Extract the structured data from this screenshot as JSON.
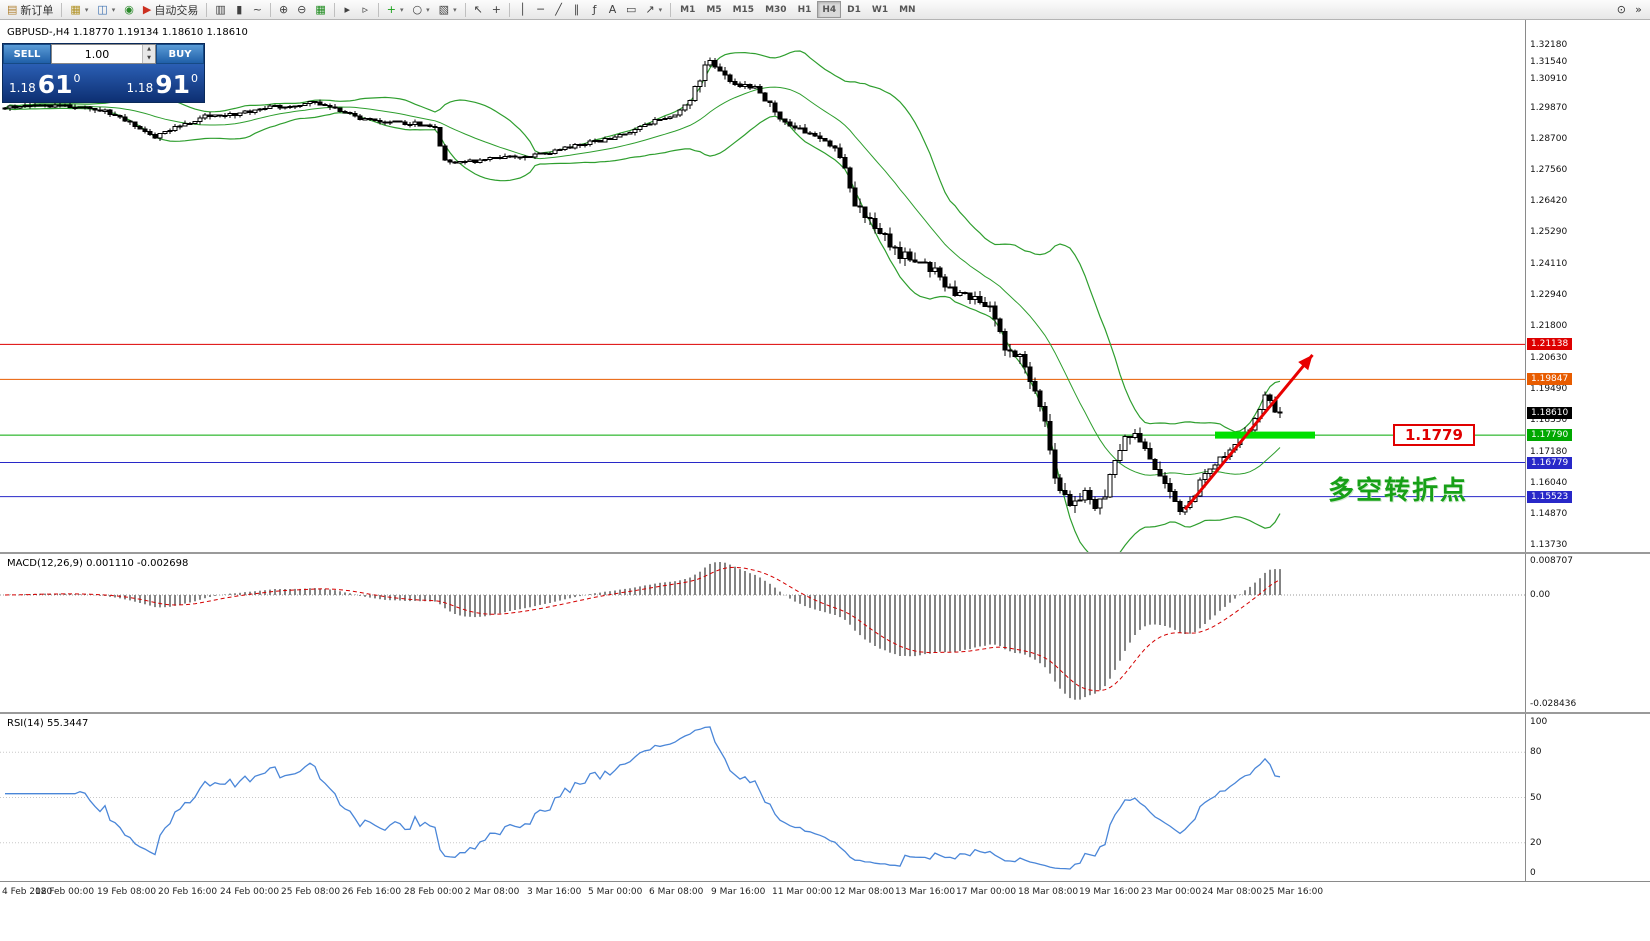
{
  "toolbar": {
    "groups": [
      {
        "items": [
          {
            "name": "new-order",
            "glyph": "▤",
            "glyph_color": "#b08030",
            "label": "新订单"
          }
        ]
      },
      {
        "items": [
          {
            "name": "new-chart",
            "glyph": "▦",
            "glyph_color": "#b09020",
            "dropdown": true
          },
          {
            "name": "profiles",
            "glyph": "◫",
            "glyph_color": "#3a6fb0",
            "dropdown": true
          },
          {
            "name": "refresh",
            "glyph": "◉",
            "glyph_color": "#2a8a2a"
          },
          {
            "name": "autotrade",
            "glyph": "▶",
            "glyph_color": "#cc3020",
            "label": "自动交易"
          }
        ]
      },
      {
        "items": [
          {
            "name": "bar-chart",
            "glyph": "▥"
          },
          {
            "name": "candlestick-chart",
            "glyph": "▮"
          },
          {
            "name": "line-chart",
            "glyph": "~"
          }
        ]
      },
      {
        "items": [
          {
            "name": "zoom-in",
            "glyph": "⊕"
          },
          {
            "name": "zoom-out",
            "glyph": "⊖"
          },
          {
            "name": "tile-windows",
            "glyph": "▦",
            "glyph_color": "#1a8a1a"
          }
        ]
      },
      {
        "items": [
          {
            "name": "auto-scroll",
            "glyph": "▸"
          },
          {
            "name": "chart-shift",
            "glyph": "▹"
          }
        ]
      },
      {
        "items": [
          {
            "name": "add-indicator",
            "glyph": "+",
            "glyph_color": "#18a018",
            "dropdown": true
          },
          {
            "name": "period-menu",
            "glyph": "○",
            "dropdown": true
          },
          {
            "name": "template-menu",
            "glyph": "▧",
            "dropdown": true
          }
        ]
      },
      {
        "items": [
          {
            "name": "cursor",
            "glyph": "↖"
          },
          {
            "name": "crosshair",
            "glyph": "+"
          }
        ]
      },
      {
        "items": [
          {
            "name": "vertical-line",
            "glyph": "│"
          },
          {
            "name": "horizontal-line",
            "glyph": "─"
          },
          {
            "name": "trendline",
            "glyph": "╱"
          },
          {
            "name": "equidistant-channel",
            "glyph": "∥"
          },
          {
            "name": "fibonacci",
            "glyph": "ƒ"
          },
          {
            "name": "text",
            "glyph": "A"
          },
          {
            "name": "text-label",
            "glyph": "▭"
          },
          {
            "name": "arrows-menu",
            "glyph": "↗",
            "dropdown": true
          }
        ]
      }
    ],
    "timeframes": {
      "items": [
        "M1",
        "M5",
        "M15",
        "M30",
        "H1",
        "H4",
        "D1",
        "W1",
        "MN"
      ],
      "active": "H4"
    },
    "right_icons": [
      {
        "name": "search",
        "glyph": "⊙"
      },
      {
        "name": "toolbar-overflow",
        "glyph": "»"
      }
    ]
  },
  "trade_panel": {
    "sell_label": "SELL",
    "buy_label": "BUY",
    "volume": "1.00",
    "sell_price": {
      "prefix": "1.18",
      "big": "61",
      "sup": "0"
    },
    "buy_price": {
      "prefix": "1.18",
      "big": "91",
      "sup": "0"
    }
  },
  "main_chart": {
    "title": "GBPUSD-,H4 1.18770 1.19134 1.18610 1.18610",
    "annotations": {
      "price_tag": "1.1779",
      "turning_point": "多空转折点"
    }
  },
  "macd": {
    "label": "MACD(12,26,9) 0.001110 -0.002698",
    "scale_top": "0.008707",
    "scale_zero": "0.00",
    "scale_bottom": "-0.028436"
  },
  "rsi": {
    "label": "RSI(14) 55.3447",
    "ticks": [
      "100",
      "80",
      "50",
      "20",
      "0"
    ]
  },
  "chart_data": {
    "type": "candlestick",
    "symbol": "GBPUSD-",
    "timeframe": "H4",
    "ohlc_current": {
      "open": 1.1877,
      "high": 1.19134,
      "low": 1.1861,
      "close": 1.1861
    },
    "bars_total": 256,
    "price_axis": {
      "view_max": 1.331,
      "view_min": 1.1348,
      "ticks": [
        "1.32180",
        "1.31540",
        "1.30910",
        "1.29870",
        "1.28700",
        "1.27560",
        "1.26420",
        "1.25290",
        "1.24110",
        "1.22940",
        "1.21800",
        "1.20630",
        "1.19490",
        "1.18350",
        "1.17180",
        "1.16040",
        "1.14870",
        "1.13730"
      ]
    },
    "price_path_anchors": [
      [
        0,
        1.2985
      ],
      [
        8,
        1.2995
      ],
      [
        14,
        1.299
      ],
      [
        22,
        1.2965
      ],
      [
        26,
        1.292
      ],
      [
        30,
        1.2878
      ],
      [
        34,
        1.2915
      ],
      [
        40,
        1.2953
      ],
      [
        46,
        1.296
      ],
      [
        52,
        1.2985
      ],
      [
        58,
        1.2995
      ],
      [
        62,
        1.3008
      ],
      [
        66,
        1.2985
      ],
      [
        70,
        1.295
      ],
      [
        76,
        1.2935
      ],
      [
        82,
        1.293
      ],
      [
        86,
        1.291
      ],
      [
        88,
        1.279
      ],
      [
        92,
        1.2785
      ],
      [
        98,
        1.28
      ],
      [
        104,
        1.2808
      ],
      [
        110,
        1.2825
      ],
      [
        114,
        1.285
      ],
      [
        120,
        1.2868
      ],
      [
        126,
        1.2905
      ],
      [
        131,
        1.2945
      ],
      [
        134,
        1.2955
      ],
      [
        137,
        1.301
      ],
      [
        139,
        1.3095
      ],
      [
        141,
        1.3175
      ],
      [
        143,
        1.312
      ],
      [
        146,
        1.307
      ],
      [
        150,
        1.306
      ],
      [
        153,
        1.3
      ],
      [
        156,
        1.293
      ],
      [
        160,
        1.29
      ],
      [
        164,
        1.2865
      ],
      [
        167,
        1.282
      ],
      [
        170,
        1.263
      ],
      [
        174,
        1.2555
      ],
      [
        178,
        1.2455
      ],
      [
        182,
        1.242
      ],
      [
        186,
        1.238
      ],
      [
        190,
        1.23
      ],
      [
        194,
        1.228
      ],
      [
        197,
        1.224
      ],
      [
        200,
        1.211
      ],
      [
        203,
        1.206
      ],
      [
        206,
        1.195
      ],
      [
        208,
        1.182
      ],
      [
        210,
        1.161
      ],
      [
        213,
        1.1525
      ],
      [
        216,
        1.1565
      ],
      [
        218,
        1.151
      ],
      [
        220,
        1.1545
      ],
      [
        222,
        1.17
      ],
      [
        225,
        1.1785
      ],
      [
        227,
        1.175
      ],
      [
        229,
        1.168
      ],
      [
        231,
        1.1625
      ],
      [
        233,
        1.156
      ],
      [
        235,
        1.1505
      ],
      [
        237,
        1.1525
      ],
      [
        239,
        1.16
      ],
      [
        241,
        1.1655
      ],
      [
        243,
        1.17
      ],
      [
        245,
        1.172
      ],
      [
        247,
        1.176
      ],
      [
        249,
        1.1805
      ],
      [
        251,
        1.188
      ],
      [
        252,
        1.193
      ],
      [
        253,
        1.19
      ],
      [
        254,
        1.1875
      ],
      [
        255,
        1.1861
      ]
    ],
    "bollinger": {
      "period": 20,
      "deviation": 2,
      "color": "#2e9e2e"
    },
    "hlines": [
      {
        "price": 1.21138,
        "label": "1.21138",
        "color": "#dd0000"
      },
      {
        "price": 1.19847,
        "label": "1.19847",
        "color": "#e85c00"
      },
      {
        "price": 1.1779,
        "label": "1.17790",
        "color": "#00a800",
        "highlight_segment": {
          "from_bar": 242,
          "to_bar": 262
        }
      },
      {
        "price": 1.16779,
        "label": "1.16779",
        "color": "#2828c8"
      },
      {
        "price": 1.15523,
        "label": "1.15523",
        "color": "#2828c8"
      }
    ],
    "current_price_label": {
      "price": 1.1861,
      "label": "1.18610"
    },
    "trend_arrow": {
      "from_bar": 236,
      "from_price": 1.1505,
      "to_bar": 261.5,
      "to_price": 1.2075,
      "color": "#e80000"
    },
    "indicators": {
      "macd": {
        "fast": 12,
        "slow": 26,
        "signal": 9,
        "value": 0.00111,
        "signal_value": -0.002698,
        "scale_top": 0.008707,
        "scale_bottom": -0.028436
      },
      "rsi": {
        "period": 14,
        "value": 55.3447,
        "levels": [
          80,
          50,
          20
        ]
      }
    },
    "time_labels": [
      "4 Feb 2020",
      "18 Feb 00:00",
      "19 Feb 08:00",
      "20 Feb 16:00",
      "24 Feb 00:00",
      "25 Feb 08:00",
      "26 Feb 16:00",
      "28 Feb 00:00",
      "2 Mar 08:00",
      "3 Mar 16:00",
      "5 Mar 00:00",
      "6 Mar 08:00",
      "9 Mar 16:00",
      "11 Mar 00:00",
      "12 Mar 08:00",
      "13 Mar 16:00",
      "17 Mar 00:00",
      "18 Mar 08:00",
      "19 Mar 16:00",
      "23 Mar 00:00",
      "24 Mar 08:00",
      "25 Mar 16:00"
    ]
  }
}
